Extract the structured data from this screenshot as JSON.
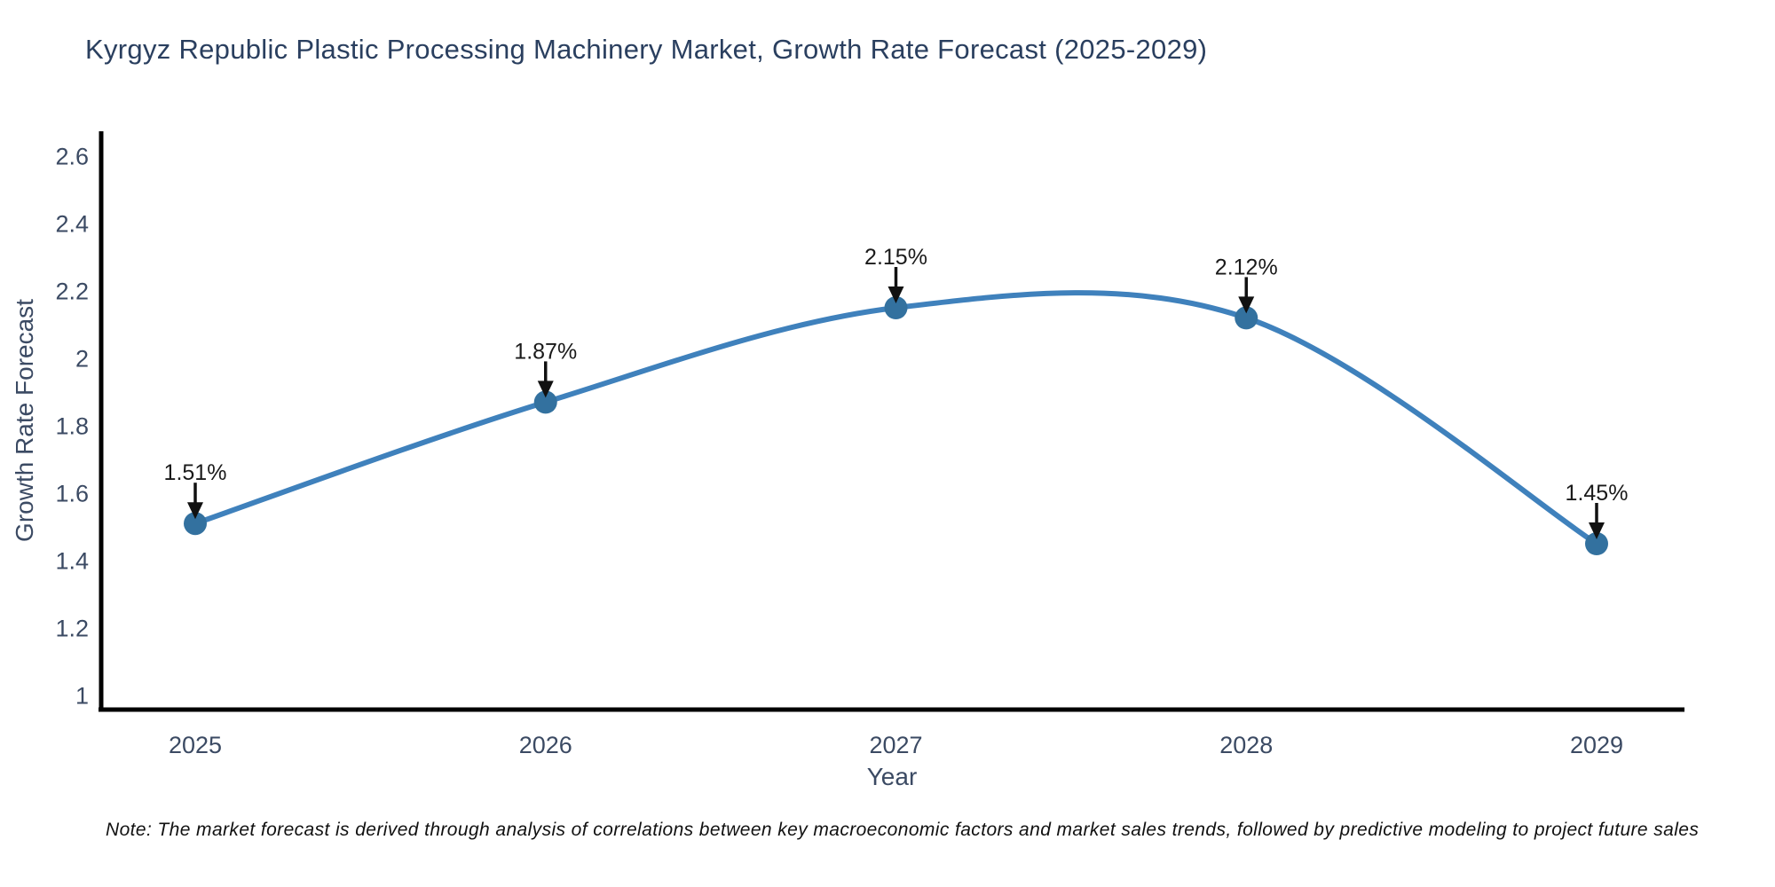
{
  "chart_data": {
    "type": "line",
    "title": "Kyrgyz Republic Plastic Processing Machinery Market, Growth Rate Forecast (2025-2029)",
    "xlabel": "Year",
    "ylabel": "Growth Rate Forecast",
    "categories": [
      "2025",
      "2026",
      "2027",
      "2028",
      "2029"
    ],
    "values": [
      1.51,
      1.87,
      2.15,
      2.12,
      1.45
    ],
    "point_labels": [
      "1.51%",
      "1.87%",
      "2.15%",
      "2.12%",
      "1.45%"
    ],
    "yticks": [
      "1",
      "1.2",
      "1.4",
      "1.6",
      "1.8",
      "2",
      "2.2",
      "2.4",
      "2.6"
    ],
    "ytick_values": [
      1,
      1.2,
      1.4,
      1.6,
      1.8,
      2,
      2.2,
      2.4,
      2.6
    ],
    "ylim": [
      1,
      2.6
    ],
    "grid": false,
    "legend": "none",
    "line_style": "smooth-spline",
    "annotation_style": "black-arrow-down-to-point",
    "colors": {
      "line": "#3f81bc",
      "marker": "#33719f",
      "spine": "#000000",
      "title_text": "#2a3f5f",
      "axis_tick_text": "#3b4a63",
      "point_label_text": "#1a1a1a",
      "annotation_arrow": "#111111",
      "background": "#ffffff"
    }
  },
  "footnote": {
    "text": "Note: The market forecast is derived through analysis of correlations between key macroeconomic factors and market sales trends, followed by predictive modeling to project future sales"
  }
}
